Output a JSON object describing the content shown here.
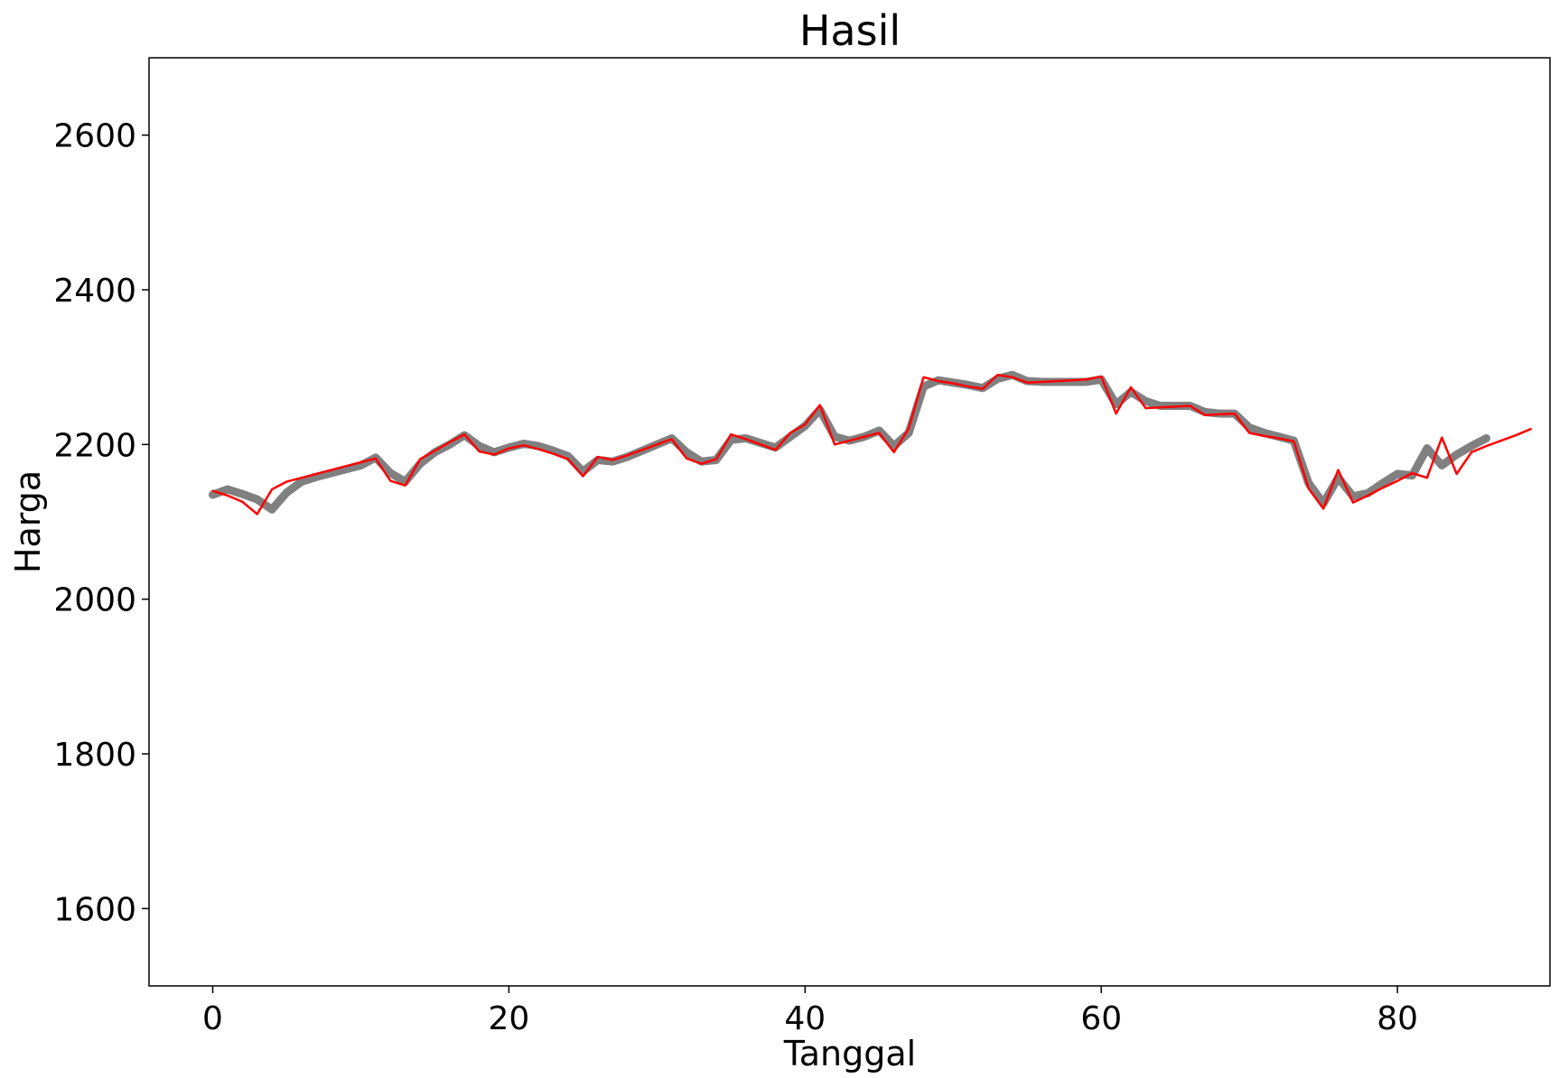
{
  "chart_data": {
    "type": "line",
    "title": "Hasil",
    "xlabel": "Tanggal",
    "ylabel": "Harga",
    "xlim": [
      -4.3,
      90.3
    ],
    "ylim": [
      1500,
      2700
    ],
    "x_ticks": [
      0,
      20,
      40,
      60,
      80
    ],
    "y_ticks": [
      1600,
      1800,
      2000,
      2200,
      2400,
      2600
    ],
    "x_tick_labels": [
      "0",
      "20",
      "40",
      "60",
      "80"
    ],
    "y_tick_labels": [
      "1600",
      "1800",
      "2000",
      "2200",
      "2400",
      "2600"
    ],
    "grid": false,
    "legend": "none",
    "colors": {
      "predicted": "#808080",
      "actual": "#ff0000"
    },
    "series": [
      {
        "color": "#808080",
        "values": [
          2135,
          2142,
          2136,
          2129,
          2116,
          2138,
          2152,
          2158,
          2163,
          2168,
          2173,
          2183,
          2163,
          2152,
          2175,
          2190,
          2200,
          2212,
          2198,
          2190,
          2196,
          2201,
          2198,
          2192,
          2185,
          2165,
          2180,
          2178,
          2184,
          2192,
          2200,
          2208,
          2190,
          2178,
          2180,
          2206,
          2208,
          2202,
          2196,
          2210,
          2224,
          2245,
          2210,
          2205,
          2210,
          2218,
          2198,
          2215,
          2275,
          2283,
          2280,
          2277,
          2273,
          2285,
          2290,
          2282,
          2281,
          2281,
          2281,
          2281,
          2284,
          2252,
          2268,
          2256,
          2250,
          2250,
          2250,
          2242,
          2240,
          2240,
          2222,
          2215,
          2210,
          2205,
          2150,
          2124,
          2157,
          2133,
          2137,
          2150,
          2162,
          2160,
          2195,
          2173,
          2187,
          2198,
          2208
        ]
      },
      {
        "color": "#ff0000",
        "values": [
          2140,
          2134,
          2126,
          2110,
          2142,
          2152,
          2157,
          2162,
          2167,
          2172,
          2177,
          2182,
          2153,
          2147,
          2181,
          2192,
          2203,
          2213,
          2191,
          2187,
          2195,
          2199,
          2194,
          2188,
          2181,
          2159,
          2184,
          2180,
          2186,
          2193,
          2200,
          2207,
          2182,
          2175,
          2181,
          2213,
          2207,
          2200,
          2193,
          2215,
          2226,
          2251,
          2200,
          2205,
          2210,
          2215,
          2190,
          2221,
          2287,
          2282,
          2279,
          2275,
          2272,
          2290,
          2287,
          2280,
          2281,
          2282,
          2283,
          2284,
          2288,
          2240,
          2274,
          2247,
          2248,
          2249,
          2250,
          2238,
          2239,
          2240,
          2215,
          2211,
          2208,
          2204,
          2143,
          2117,
          2167,
          2125,
          2134,
          2144,
          2153,
          2163,
          2157,
          2209,
          2162,
          2190,
          2198,
          2205,
          2212,
          2220
        ]
      }
    ]
  }
}
